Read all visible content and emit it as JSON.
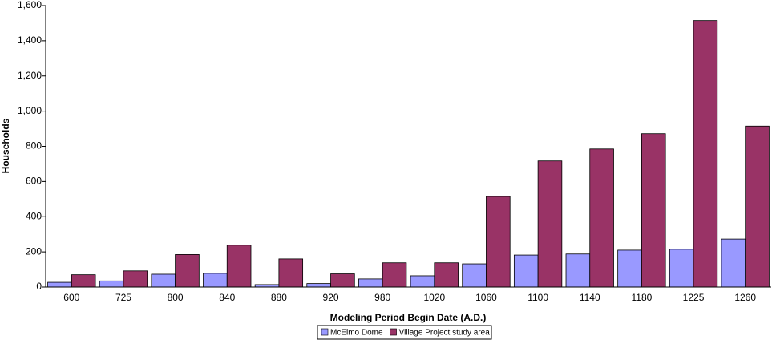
{
  "chart_data": {
    "type": "bar",
    "x_label": "Modeling Period Begin Date (A.D.)",
    "y_label": "Households",
    "categories": [
      "600",
      "725",
      "800",
      "840",
      "880",
      "920",
      "980",
      "1020",
      "1060",
      "1100",
      "1140",
      "1180",
      "1225",
      "1260"
    ],
    "series": [
      {
        "name": "McElmo Dome",
        "color": "#9999ff",
        "values": [
          27,
          35,
          73,
          78,
          14,
          20,
          46,
          64,
          132,
          182,
          188,
          210,
          215,
          273
        ]
      },
      {
        "name": "Village Project study area",
        "color": "#993366",
        "values": [
          70,
          92,
          185,
          238,
          160,
          75,
          138,
          138,
          515,
          717,
          785,
          872,
          1515,
          915
        ]
      }
    ],
    "ylim": [
      0,
      1600
    ],
    "yticks": [
      0,
      200,
      400,
      600,
      800,
      {
        "value": 1000,
        "label": "1,000"
      },
      {
        "value": 1200,
        "label": "1,200"
      },
      {
        "value": 1400,
        "label": "1,400"
      },
      {
        "value": 1600,
        "label": "1,600"
      }
    ],
    "grid": false,
    "legend": "bottom"
  }
}
